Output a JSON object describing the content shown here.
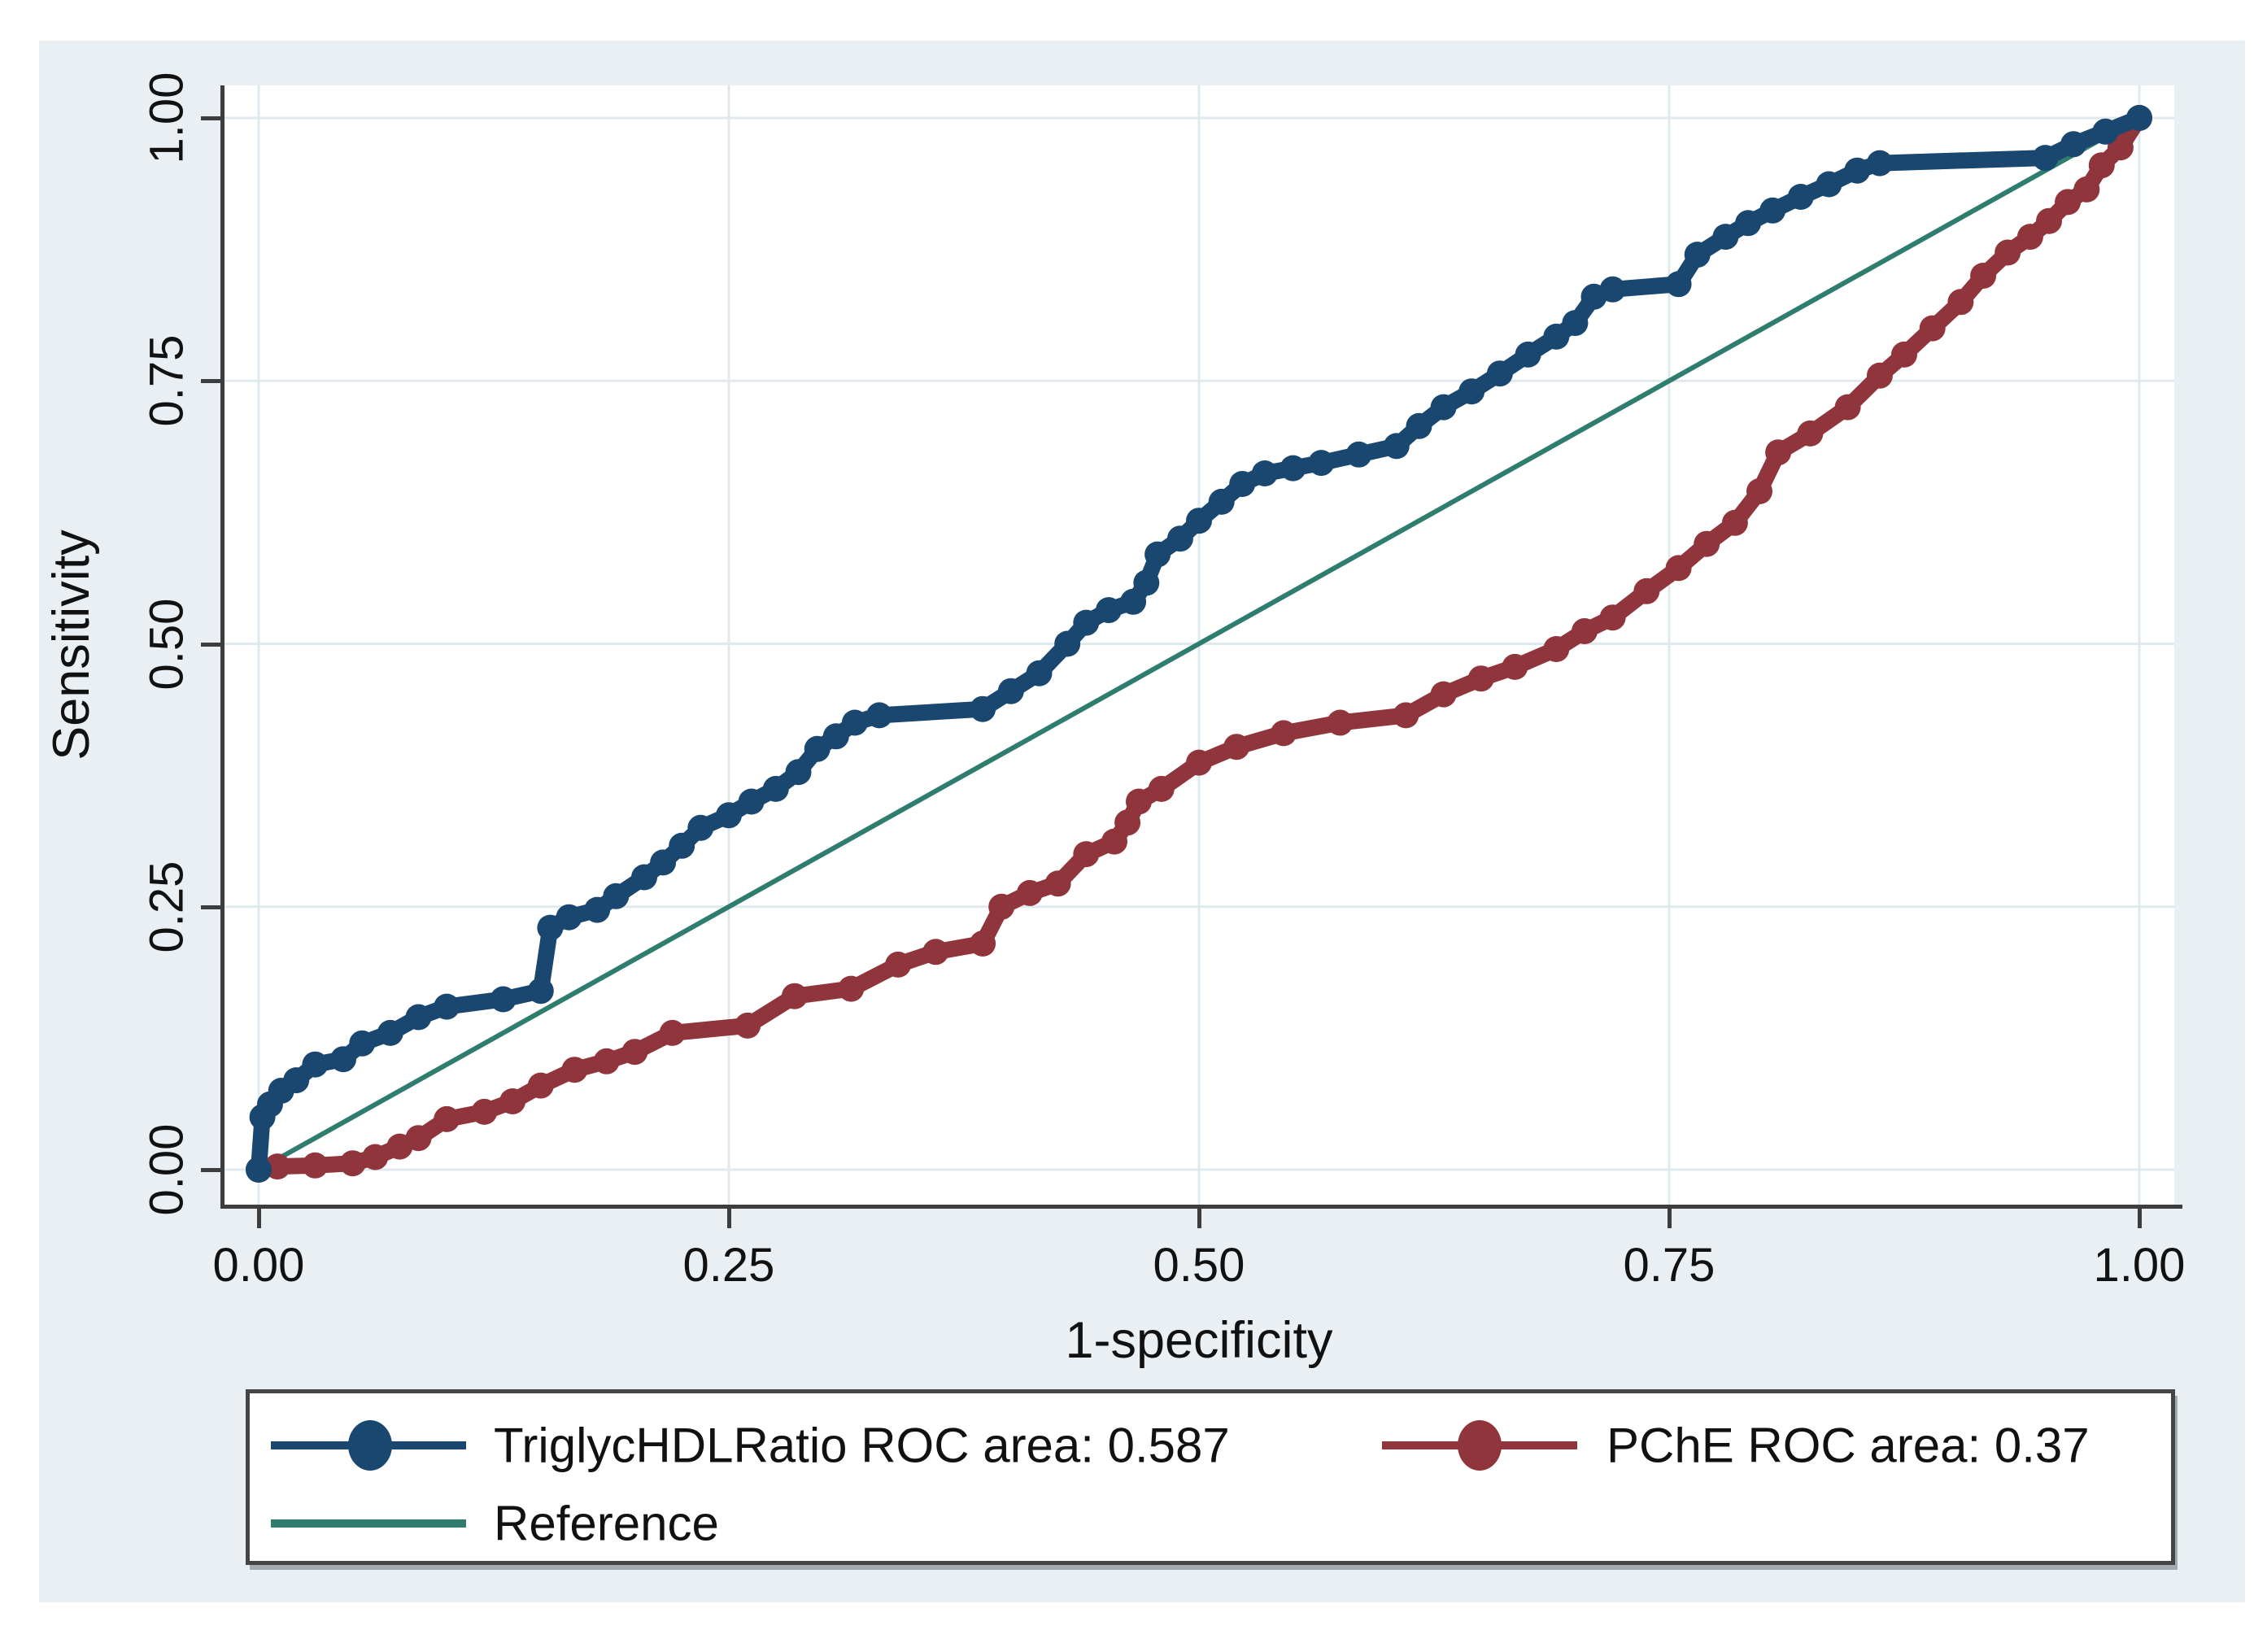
{
  "axes": {
    "x_label": "1-specificity",
    "y_label": "Sensitivity",
    "x_tick_labels": [
      "0.00",
      "0.25",
      "0.50",
      "0.75",
      "1.00"
    ],
    "y_tick_labels": [
      "0.00",
      "0.25",
      "0.50",
      "0.75",
      "1.00"
    ]
  },
  "legend": {
    "series1_label": "TriglycHDLRatio ROC area: 0.587",
    "series2_label": "PChE ROC area: 0.37",
    "reference_label": "Reference"
  },
  "colors": {
    "navy": "#1a476f",
    "maroon": "#90353b",
    "teal": "#2e7d6f",
    "figure_bg": "#e9eff2",
    "grid": "#dfeaee",
    "axis": "#3d3d3d"
  },
  "chart_data": {
    "type": "line",
    "title": "",
    "xlabel": "1-specificity",
    "ylabel": "Sensitivity",
    "xlim": [
      0,
      1
    ],
    "ylim": [
      0,
      1
    ],
    "xticks": [
      0,
      0.25,
      0.5,
      0.75,
      1
    ],
    "yticks": [
      0,
      0.25,
      0.5,
      0.75,
      1
    ],
    "grid": true,
    "legend_position": "bottom",
    "series": [
      {
        "name": "Reference",
        "color": "#2e7d6f",
        "marker": "none",
        "line_width": 6,
        "points": [
          [
            0,
            0
          ],
          [
            1,
            1
          ]
        ]
      },
      {
        "name": "PChE ROC area: 0.37",
        "roc_area": 0.37,
        "color": "#90353b",
        "marker": "circle",
        "line_width": 20,
        "points": [
          [
            0,
            0
          ],
          [
            0.01,
            0.003
          ],
          [
            0.03,
            0.004
          ],
          [
            0.05,
            0.006
          ],
          [
            0.062,
            0.012
          ],
          [
            0.075,
            0.022
          ],
          [
            0.085,
            0.03
          ],
          [
            0.1,
            0.048
          ],
          [
            0.12,
            0.055
          ],
          [
            0.135,
            0.065
          ],
          [
            0.15,
            0.08
          ],
          [
            0.168,
            0.095
          ],
          [
            0.185,
            0.103
          ],
          [
            0.2,
            0.112
          ],
          [
            0.22,
            0.13
          ],
          [
            0.26,
            0.137
          ],
          [
            0.285,
            0.165
          ],
          [
            0.315,
            0.172
          ],
          [
            0.34,
            0.195
          ],
          [
            0.36,
            0.207
          ],
          [
            0.385,
            0.215
          ],
          [
            0.395,
            0.25
          ],
          [
            0.41,
            0.263
          ],
          [
            0.425,
            0.272
          ],
          [
            0.44,
            0.3
          ],
          [
            0.455,
            0.312
          ],
          [
            0.462,
            0.33
          ],
          [
            0.468,
            0.35
          ],
          [
            0.48,
            0.362
          ],
          [
            0.5,
            0.387
          ],
          [
            0.52,
            0.402
          ],
          [
            0.545,
            0.415
          ],
          [
            0.575,
            0.425
          ],
          [
            0.61,
            0.432
          ],
          [
            0.63,
            0.452
          ],
          [
            0.65,
            0.467
          ],
          [
            0.668,
            0.478
          ],
          [
            0.69,
            0.495
          ],
          [
            0.705,
            0.512
          ],
          [
            0.72,
            0.525
          ],
          [
            0.738,
            0.55
          ],
          [
            0.755,
            0.572
          ],
          [
            0.77,
            0.595
          ],
          [
            0.785,
            0.615
          ],
          [
            0.798,
            0.645
          ],
          [
            0.808,
            0.682
          ],
          [
            0.825,
            0.7
          ],
          [
            0.845,
            0.725
          ],
          [
            0.862,
            0.755
          ],
          [
            0.875,
            0.775
          ],
          [
            0.89,
            0.8
          ],
          [
            0.905,
            0.825
          ],
          [
            0.917,
            0.85
          ],
          [
            0.93,
            0.872
          ],
          [
            0.942,
            0.887
          ],
          [
            0.952,
            0.902
          ],
          [
            0.962,
            0.92
          ],
          [
            0.972,
            0.932
          ],
          [
            0.98,
            0.955
          ],
          [
            0.99,
            0.972
          ],
          [
            1,
            1
          ]
        ]
      },
      {
        "name": "TriglycHDLRatio ROC area: 0.587",
        "roc_area": 0.587,
        "color": "#1a476f",
        "marker": "circle",
        "line_width": 20,
        "points": [
          [
            0,
            0
          ],
          [
            0.002,
            0.05
          ],
          [
            0.006,
            0.062
          ],
          [
            0.012,
            0.075
          ],
          [
            0.02,
            0.085
          ],
          [
            0.03,
            0.1
          ],
          [
            0.045,
            0.105
          ],
          [
            0.055,
            0.12
          ],
          [
            0.07,
            0.13
          ],
          [
            0.085,
            0.145
          ],
          [
            0.1,
            0.155
          ],
          [
            0.13,
            0.162
          ],
          [
            0.15,
            0.17
          ],
          [
            0.155,
            0.23
          ],
          [
            0.165,
            0.24
          ],
          [
            0.18,
            0.247
          ],
          [
            0.19,
            0.26
          ],
          [
            0.205,
            0.278
          ],
          [
            0.215,
            0.292
          ],
          [
            0.225,
            0.308
          ],
          [
            0.235,
            0.325
          ],
          [
            0.25,
            0.337
          ],
          [
            0.262,
            0.35
          ],
          [
            0.275,
            0.362
          ],
          [
            0.287,
            0.378
          ],
          [
            0.297,
            0.4
          ],
          [
            0.307,
            0.412
          ],
          [
            0.317,
            0.425
          ],
          [
            0.33,
            0.432
          ],
          [
            0.385,
            0.438
          ],
          [
            0.4,
            0.455
          ],
          [
            0.415,
            0.472
          ],
          [
            0.43,
            0.5
          ],
          [
            0.44,
            0.52
          ],
          [
            0.452,
            0.532
          ],
          [
            0.465,
            0.54
          ],
          [
            0.472,
            0.558
          ],
          [
            0.478,
            0.585
          ],
          [
            0.49,
            0.6
          ],
          [
            0.5,
            0.617
          ],
          [
            0.512,
            0.635
          ],
          [
            0.523,
            0.652
          ],
          [
            0.535,
            0.662
          ],
          [
            0.55,
            0.667
          ],
          [
            0.565,
            0.672
          ],
          [
            0.585,
            0.68
          ],
          [
            0.605,
            0.688
          ],
          [
            0.617,
            0.707
          ],
          [
            0.63,
            0.725
          ],
          [
            0.645,
            0.74
          ],
          [
            0.66,
            0.757
          ],
          [
            0.675,
            0.775
          ],
          [
            0.69,
            0.792
          ],
          [
            0.7,
            0.805
          ],
          [
            0.71,
            0.83
          ],
          [
            0.72,
            0.837
          ],
          [
            0.755,
            0.842
          ],
          [
            0.765,
            0.87
          ],
          [
            0.78,
            0.887
          ],
          [
            0.792,
            0.9
          ],
          [
            0.805,
            0.912
          ],
          [
            0.82,
            0.925
          ],
          [
            0.835,
            0.937
          ],
          [
            0.85,
            0.95
          ],
          [
            0.862,
            0.957
          ],
          [
            0.95,
            0.962
          ],
          [
            0.965,
            0.975
          ],
          [
            0.982,
            0.987
          ],
          [
            1,
            1
          ]
        ]
      }
    ]
  }
}
